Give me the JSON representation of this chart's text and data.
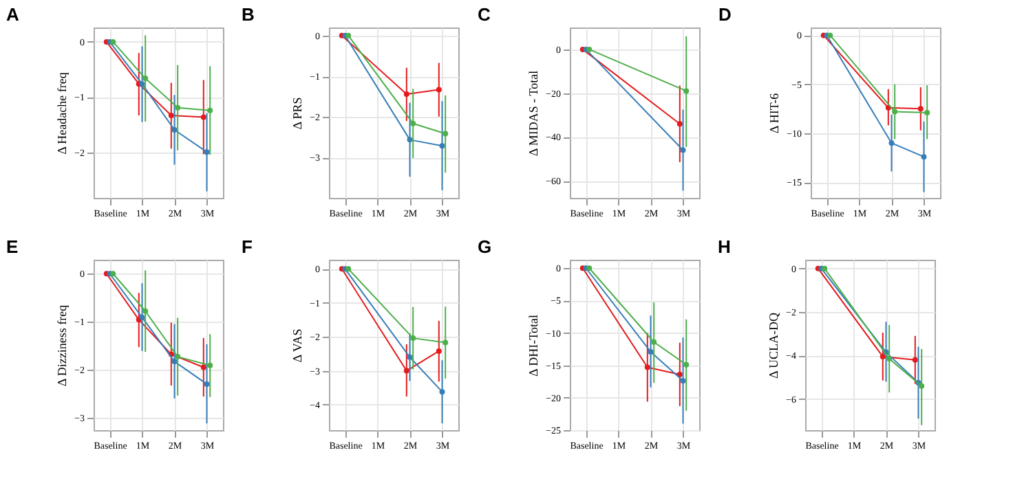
{
  "chart_data": [
    {
      "type": "line",
      "title": "A",
      "ylabel": "Δ Headache freq",
      "categories": [
        "Baseline",
        "1M",
        "2M",
        "3M"
      ],
      "ylim": [
        -2.82,
        0.26
      ],
      "yticks": [
        0,
        -1,
        -2
      ],
      "grid": true,
      "marker": "circle",
      "series": [
        {
          "color": "#e41a1c",
          "values": [
            0,
            -0.76,
            -1.33,
            -1.36
          ],
          "errors": [
            null,
            [
              -1.33,
              -0.2
            ],
            [
              -1.93,
              -0.74
            ],
            [
              -2.03,
              -0.69
            ]
          ]
        },
        {
          "color": "#377eb8",
          "values": [
            0,
            -0.76,
            -1.59,
            -1.99
          ],
          "errors": [
            null,
            [
              -1.45,
              -0.08
            ],
            [
              -2.22,
              -0.96
            ],
            [
              -2.7,
              -1.29
            ]
          ]
        },
        {
          "color": "#4daf4a",
          "values": [
            0,
            -0.66,
            -1.19,
            -1.24
          ],
          "errors": [
            null,
            [
              -1.44,
              0.12
            ],
            [
              -1.96,
              -0.42
            ],
            [
              -2.04,
              -0.44
            ]
          ]
        }
      ]
    },
    {
      "type": "line",
      "title": "B",
      "ylabel": "Δ PRS",
      "categories": [
        "Baseline",
        "1M",
        "2M",
        "3M"
      ],
      "ylim": [
        -3.99,
        0.2
      ],
      "yticks": [
        0,
        -1,
        -2,
        -3
      ],
      "grid": true,
      "marker": "circle",
      "series": [
        {
          "color": "#e41a1c",
          "values": [
            0,
            null,
            -1.44,
            -1.33
          ],
          "errors": [
            null,
            null,
            [
              -2.1,
              -0.79
            ],
            [
              -1.99,
              -0.67
            ]
          ]
        },
        {
          "color": "#377eb8",
          "values": [
            0,
            null,
            -2.56,
            -2.71
          ],
          "errors": [
            null,
            null,
            [
              -3.47,
              -1.65
            ],
            [
              -3.8,
              -1.61
            ]
          ]
        },
        {
          "color": "#4daf4a",
          "values": [
            0,
            null,
            -2.16,
            -2.41
          ],
          "errors": [
            null,
            null,
            [
              -3.01,
              -1.31
            ],
            [
              -3.37,
              -1.47
            ]
          ]
        }
      ]
    },
    {
      "type": "line",
      "title": "C",
      "ylabel": "Δ MIDAS - Total",
      "categories": [
        "Baseline",
        "1M",
        "2M",
        "3M"
      ],
      "ylim": [
        -67.8,
        10
      ],
      "yticks": [
        0,
        -20,
        -40,
        -60
      ],
      "grid": true,
      "marker": "circle",
      "series": [
        {
          "color": "#e41a1c",
          "values": [
            0,
            null,
            null,
            -34
          ],
          "errors": [
            null,
            null,
            null,
            [
              -51.5,
              -16.5
            ]
          ]
        },
        {
          "color": "#377eb8",
          "values": [
            0,
            null,
            null,
            -46
          ],
          "errors": [
            null,
            null,
            null,
            [
              -64.5,
              -27.5
            ]
          ]
        },
        {
          "color": "#4daf4a",
          "values": [
            0,
            null,
            null,
            -19
          ],
          "errors": [
            null,
            null,
            null,
            [
              -44.5,
              6
            ]
          ]
        }
      ]
    },
    {
      "type": "line",
      "title": "D",
      "ylabel": "Δ HIT-6",
      "categories": [
        "Baseline",
        "1M",
        "2M",
        "3M"
      ],
      "ylim": [
        -16.6,
        0.8
      ],
      "yticks": [
        0,
        -5,
        -10,
        -15
      ],
      "grid": true,
      "marker": "circle",
      "series": [
        {
          "color": "#e41a1c",
          "values": [
            0,
            null,
            -7.4,
            -7.5
          ],
          "errors": [
            null,
            null,
            [
              -9.2,
              -5.5
            ],
            [
              -9.7,
              -5.3
            ]
          ]
        },
        {
          "color": "#377eb8",
          "values": [
            0,
            null,
            -11,
            -12.4
          ],
          "errors": [
            null,
            null,
            [
              -13.9,
              -8.1
            ],
            [
              -16,
              -8.8
            ]
          ]
        },
        {
          "color": "#4daf4a",
          "values": [
            0,
            null,
            -7.8,
            -7.9
          ],
          "errors": [
            null,
            null,
            [
              -10.6,
              -5
            ],
            [
              -10.6,
              -5.1
            ]
          ]
        }
      ]
    },
    {
      "type": "line",
      "title": "E",
      "ylabel": "Δ Dizziness freq",
      "categories": [
        "Baseline",
        "1M",
        "2M",
        "3M"
      ],
      "ylim": [
        -3.26,
        0.29
      ],
      "yticks": [
        0,
        -1,
        -2,
        -3
      ],
      "grid": true,
      "marker": "circle",
      "series": [
        {
          "color": "#e41a1c",
          "values": [
            0,
            -0.96,
            -1.68,
            -1.95
          ],
          "errors": [
            null,
            [
              -1.53,
              -0.4
            ],
            [
              -2.33,
              -1.02
            ],
            [
              -2.56,
              -1.34
            ]
          ]
        },
        {
          "color": "#377eb8",
          "values": [
            0,
            -0.91,
            -1.83,
            -2.3
          ],
          "errors": [
            null,
            [
              -1.61,
              -0.2
            ],
            [
              -2.6,
              -1.05
            ],
            [
              -3.12,
              -1.47
            ]
          ]
        },
        {
          "color": "#4daf4a",
          "values": [
            0,
            -0.78,
            -1.73,
            -1.91
          ],
          "errors": [
            null,
            [
              -1.63,
              0.07
            ],
            [
              -2.54,
              -0.92
            ],
            [
              -2.57,
              -1.26
            ]
          ]
        }
      ]
    },
    {
      "type": "line",
      "title": "F",
      "ylabel": "Δ VAS",
      "categories": [
        "Baseline",
        "1M",
        "2M",
        "3M"
      ],
      "ylim": [
        -4.75,
        0.27
      ],
      "yticks": [
        0,
        -1,
        -2,
        -3,
        -4
      ],
      "grid": true,
      "marker": "circle",
      "series": [
        {
          "color": "#e41a1c",
          "values": [
            0,
            null,
            -3.0,
            -2.42
          ],
          "errors": [
            null,
            null,
            [
              -3.76,
              -2.22
            ],
            [
              -3.32,
              -1.53
            ]
          ]
        },
        {
          "color": "#377eb8",
          "values": [
            0,
            null,
            -2.6,
            -3.62
          ],
          "errors": [
            null,
            null,
            [
              -3.3,
              -1.9
            ],
            [
              -4.55,
              -2.69
            ]
          ]
        },
        {
          "color": "#4daf4a",
          "values": [
            0,
            null,
            -2.04,
            -2.17
          ],
          "errors": [
            null,
            null,
            [
              -2.96,
              -1.12
            ],
            [
              -3.23,
              -1.11
            ]
          ]
        }
      ]
    },
    {
      "type": "line",
      "title": "G",
      "ylabel": "Δ DHI-Total",
      "categories": [
        "Baseline",
        "1M",
        "2M",
        "3M"
      ],
      "ylim": [
        -25,
        1.3
      ],
      "yticks": [
        0,
        -5,
        -10,
        -15,
        -20,
        -25
      ],
      "grid": true,
      "marker": "circle",
      "series": [
        {
          "color": "#e41a1c",
          "values": [
            0,
            null,
            -15.3,
            -16.4
          ],
          "errors": [
            null,
            null,
            [
              -20.6,
              -10
            ],
            [
              -21.3,
              -11.5
            ]
          ]
        },
        {
          "color": "#377eb8",
          "values": [
            0,
            null,
            -12.9,
            -17.4
          ],
          "errors": [
            null,
            null,
            [
              -18.4,
              -7.3
            ],
            [
              -24,
              -10.7
            ]
          ]
        },
        {
          "color": "#4daf4a",
          "values": [
            0,
            null,
            -11.4,
            -14.9
          ],
          "errors": [
            null,
            null,
            [
              -17.7,
              -5.3
            ],
            [
              -22,
              -7.9
            ]
          ]
        }
      ]
    },
    {
      "type": "line",
      "title": "H",
      "ylabel": "Δ UCLA-DQ",
      "categories": [
        "Baseline",
        "1M",
        "2M",
        "3M"
      ],
      "ylim": [
        -7.43,
        0.4
      ],
      "yticks": [
        0,
        -2,
        -4,
        -6
      ],
      "grid": true,
      "marker": "circle",
      "series": [
        {
          "color": "#e41a1c",
          "values": [
            0,
            null,
            -4.05,
            -4.2
          ],
          "errors": [
            null,
            null,
            [
              -5.15,
              -2.95
            ],
            [
              -5.3,
              -3.1
            ]
          ]
        },
        {
          "color": "#377eb8",
          "values": [
            0,
            null,
            -3.85,
            -5.25
          ],
          "errors": [
            null,
            null,
            [
              -5.2,
              -2.45
            ],
            [
              -6.9,
              -3.6
            ]
          ]
        },
        {
          "color": "#4daf4a",
          "values": [
            0,
            null,
            -4.15,
            -5.4
          ],
          "errors": [
            null,
            null,
            [
              -5.7,
              -2.6
            ],
            [
              -7.2,
              -3.7
            ]
          ]
        }
      ]
    }
  ]
}
